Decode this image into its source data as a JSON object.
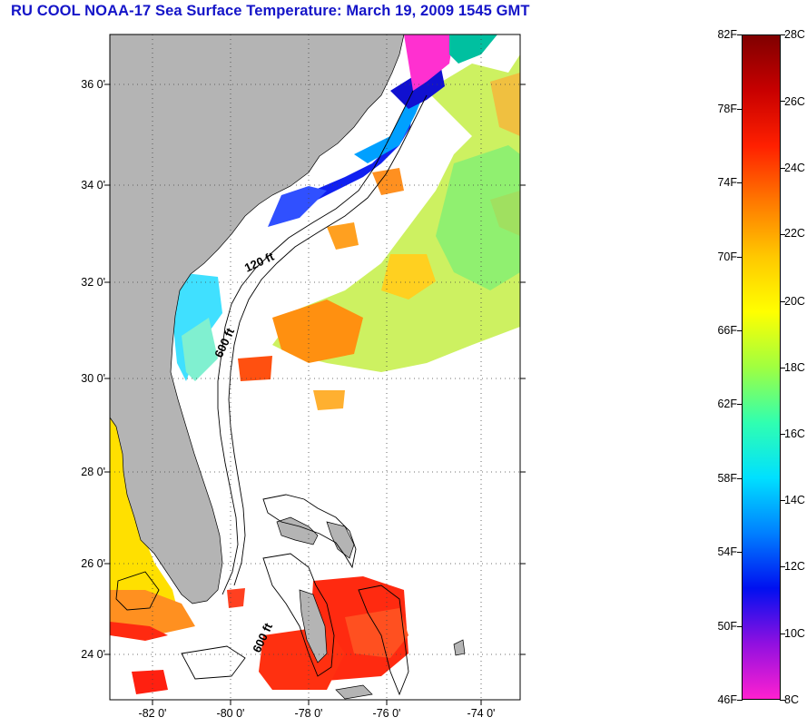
{
  "title": "RU COOL  NOAA-17  Sea Surface Temperature:  March 19, 2009 1545 GMT",
  "map": {
    "lat_labels": [
      "36 0'",
      "34 0'",
      "32 0'",
      "30 0'",
      "28 0'",
      "26 0'",
      "24 0'"
    ],
    "lon_labels": [
      "-82 0'",
      "-80 0'",
      "-78 0'",
      "-76 0'",
      "-74 0'"
    ],
    "contour_labels": [
      "120 ft",
      "600 ft",
      "600 ft"
    ],
    "land_color": "#b4b4b4",
    "ocean_no_data_color": "#ffffff"
  },
  "colorbar": {
    "fahrenheit_labels": [
      "82F",
      "78F",
      "74F",
      "70F",
      "66F",
      "62F",
      "58F",
      "54F",
      "50F",
      "46F"
    ],
    "celsius_labels": [
      "28C",
      "26C",
      "24C",
      "22C",
      "20C",
      "18C",
      "16C",
      "14C",
      "12C",
      "10C",
      "8C"
    ],
    "colors_top_to_bottom": [
      "#800000",
      "#c80000",
      "#ff2000",
      "#ff7800",
      "#ffc800",
      "#ffff00",
      "#a0ff40",
      "#30ffb0",
      "#00e0ff",
      "#0080ff",
      "#0010f0",
      "#9010e0",
      "#ff20d0"
    ]
  }
}
